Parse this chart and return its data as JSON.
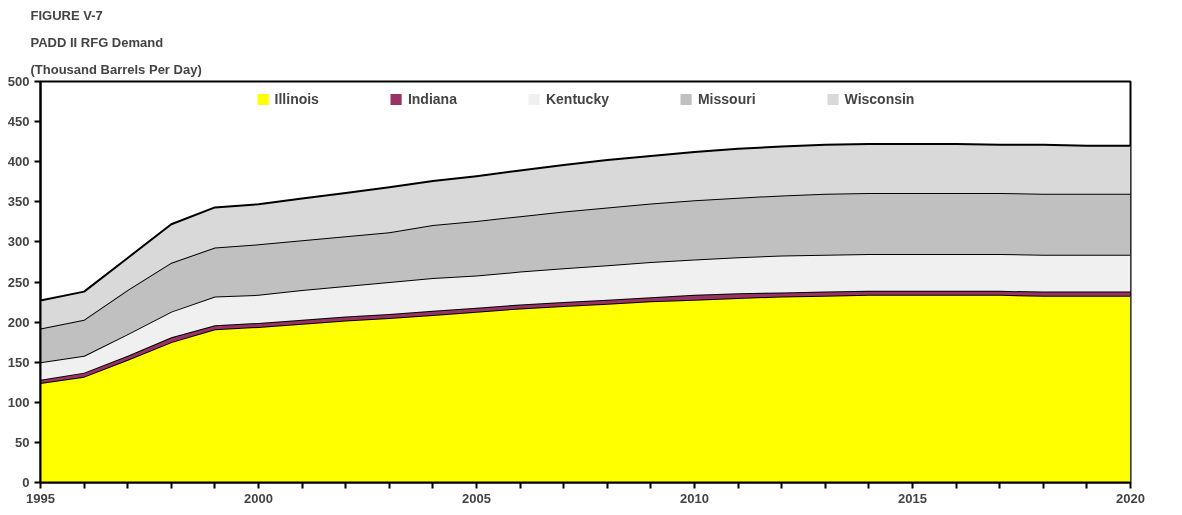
{
  "chart_data": {
    "type": "area",
    "stacked": true,
    "title": "FIGURE V-7",
    "subtitle": "PADD II RFG Demand",
    "ylabel": "(Thousand Barrels Per Day)",
    "x": [
      1995,
      1996,
      1997,
      1998,
      1999,
      2000,
      2001,
      2002,
      2003,
      2004,
      2005,
      2006,
      2007,
      2008,
      2009,
      2010,
      2011,
      2012,
      2013,
      2014,
      2015,
      2016,
      2017,
      2018,
      2019,
      2020
    ],
    "series": [
      {
        "name": "Illinois",
        "color": "#ffff00",
        "values": [
          124,
          132,
          153,
          175,
          191,
          194,
          198,
          202,
          205,
          209,
          213,
          217,
          220,
          223,
          226,
          228,
          230,
          232,
          233,
          234,
          234,
          234,
          234,
          233,
          233,
          233
        ]
      },
      {
        "name": "Indiana",
        "color": "#993366",
        "values": [
          4,
          5,
          5,
          6,
          5,
          5,
          5,
          5,
          5,
          5,
          5,
          5,
          5,
          5,
          5,
          6,
          6,
          5,
          5,
          5,
          5,
          5,
          5,
          5,
          5,
          5
        ]
      },
      {
        "name": "Kentucky",
        "color": "#f0f0f0",
        "values": [
          22,
          21,
          27,
          32,
          36,
          35,
          37,
          38,
          40,
          41,
          40,
          41,
          42,
          43,
          44,
          44,
          45,
          46,
          46,
          46,
          46,
          46,
          46,
          46,
          46,
          46
        ]
      },
      {
        "name": "Missouri",
        "color": "#c0c0c0",
        "values": [
          42,
          45,
          55,
          61,
          61,
          63,
          62,
          62,
          62,
          66,
          68,
          69,
          71,
          72,
          73,
          74,
          74,
          75,
          76,
          76,
          76,
          76,
          76,
          76,
          76,
          76
        ]
      },
      {
        "name": "Wisconsin",
        "color": "#d9d9d9",
        "values": [
          35,
          35,
          40,
          48,
          50,
          50,
          52,
          54,
          56,
          55,
          56,
          57,
          58,
          59,
          59,
          60,
          61,
          61,
          61,
          61,
          61,
          61,
          60,
          61,
          60,
          60
        ]
      }
    ],
    "xlim": [
      1995,
      2020
    ],
    "xticks": [
      1995,
      {
        "value": 1996,
        "label": null
      },
      {
        "value": 1997,
        "label": null
      },
      {
        "value": 1998,
        "label": null
      },
      {
        "value": 1999,
        "label": null
      },
      2000,
      {
        "value": 2001,
        "label": null
      },
      {
        "value": 2002,
        "label": null
      },
      {
        "value": 2003,
        "label": null
      },
      {
        "value": 2004,
        "label": null
      },
      2005,
      {
        "value": 2006,
        "label": null
      },
      {
        "value": 2007,
        "label": null
      },
      {
        "value": 2008,
        "label": null
      },
      {
        "value": 2009,
        "label": null
      },
      2010,
      {
        "value": 2011,
        "label": null
      },
      {
        "value": 2012,
        "label": null
      },
      {
        "value": 2013,
        "label": null
      },
      {
        "value": 2014,
        "label": null
      },
      2015,
      {
        "value": 2016,
        "label": null
      },
      {
        "value": 2017,
        "label": null
      },
      {
        "value": 2018,
        "label": null
      },
      {
        "value": 2019,
        "label": null
      },
      2020
    ],
    "ylim": [
      0,
      500
    ],
    "yticks": [
      0,
      50,
      100,
      150,
      200,
      250,
      300,
      350,
      400,
      450,
      500
    ],
    "grid": false,
    "legend": "top"
  }
}
